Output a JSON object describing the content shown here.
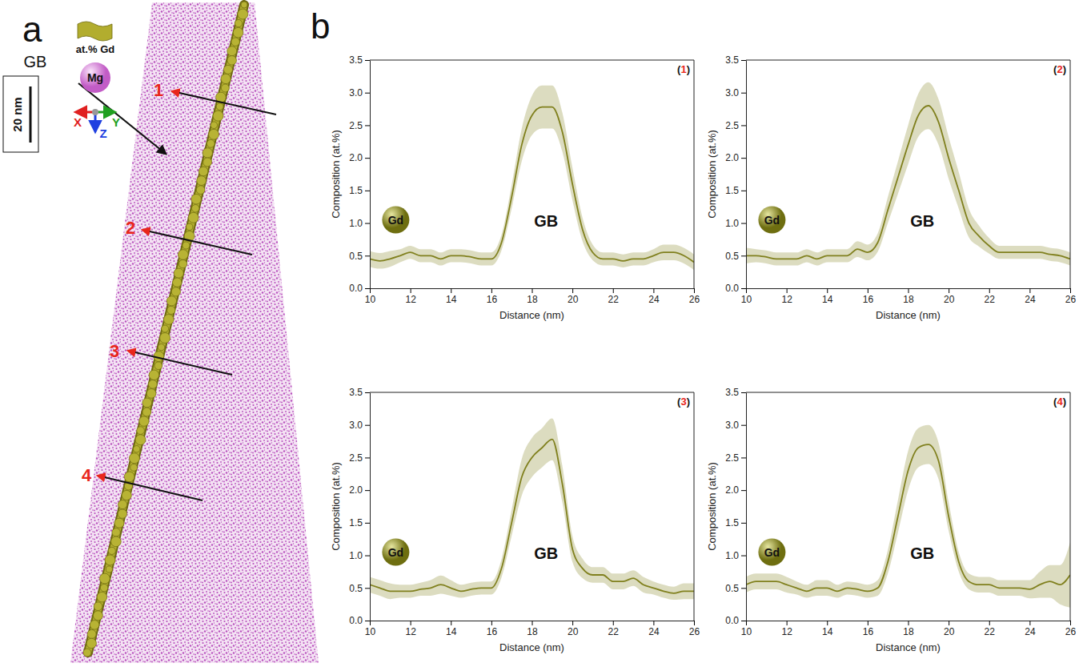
{
  "chart_data": [
    {
      "type": "line",
      "title": "(1)",
      "x_label": "Distance (nm)",
      "y_label": "Composition (at.%)",
      "annotation": "GB",
      "x": [
        10,
        10.5,
        11,
        11.5,
        12,
        12.5,
        13,
        13.5,
        14,
        14.5,
        15,
        15.5,
        16,
        16.5,
        17,
        17.5,
        18,
        18.5,
        19,
        19.5,
        20,
        20.5,
        21,
        21.5,
        22,
        22.5,
        23,
        23.5,
        24,
        24.5,
        25,
        25.5,
        26
      ],
      "series": [
        {
          "name": "Gd",
          "color": "#80801e",
          "values": [
            0.45,
            0.42,
            0.45,
            0.5,
            0.55,
            0.5,
            0.5,
            0.45,
            0.5,
            0.5,
            0.48,
            0.45,
            0.45,
            0.7,
            1.4,
            2.2,
            2.65,
            2.78,
            2.78,
            2.4,
            1.6,
            0.9,
            0.55,
            0.45,
            0.45,
            0.42,
            0.45,
            0.45,
            0.5,
            0.55,
            0.55,
            0.5,
            0.4
          ],
          "error": [
            0.12,
            0.12,
            0.12,
            0.1,
            0.1,
            0.1,
            0.1,
            0.1,
            0.1,
            0.1,
            0.1,
            0.1,
            0.1,
            0.12,
            0.18,
            0.25,
            0.3,
            0.33,
            0.33,
            0.3,
            0.25,
            0.18,
            0.12,
            0.1,
            0.1,
            0.1,
            0.1,
            0.1,
            0.1,
            0.12,
            0.12,
            0.12,
            0.12
          ]
        }
      ],
      "xlim": [
        10,
        26
      ],
      "xticks": [
        10,
        12,
        14,
        16,
        18,
        20,
        22,
        24,
        26
      ],
      "ylim": [
        0,
        3.5
      ],
      "yticks": [
        {
          "value": 0,
          "label": "0.0"
        },
        {
          "value": 0.5,
          "label": "0.5"
        },
        {
          "value": 1,
          "label": "1.0"
        },
        {
          "value": 1.5,
          "label": "1.5"
        },
        {
          "value": 2,
          "label": "2.0"
        },
        {
          "value": 2.5,
          "label": "2.5"
        },
        {
          "value": 3,
          "label": "3.0"
        },
        {
          "value": 3.5,
          "label": "3.5"
        }
      ]
    },
    {
      "type": "line",
      "title": "(2)",
      "x_label": "Distance (nm)",
      "y_label": "Composition (at.%)",
      "annotation": "GB",
      "x": [
        10,
        10.5,
        11,
        11.5,
        12,
        12.5,
        13,
        13.5,
        14,
        14.5,
        15,
        15.5,
        16,
        16.5,
        17,
        17.5,
        18,
        18.5,
        19,
        19.5,
        20,
        20.5,
        21,
        21.5,
        22,
        22.5,
        23,
        23.5,
        24,
        24.5,
        25,
        25.5,
        26
      ],
      "series": [
        {
          "name": "Gd",
          "color": "#80801e",
          "values": [
            0.5,
            0.5,
            0.48,
            0.45,
            0.45,
            0.45,
            0.5,
            0.45,
            0.5,
            0.5,
            0.5,
            0.6,
            0.55,
            0.7,
            1.2,
            1.7,
            2.2,
            2.65,
            2.8,
            2.55,
            2.0,
            1.5,
            1.0,
            0.8,
            0.65,
            0.55,
            0.55,
            0.55,
            0.55,
            0.55,
            0.52,
            0.5,
            0.45
          ],
          "error": [
            0.12,
            0.1,
            0.1,
            0.1,
            0.1,
            0.1,
            0.1,
            0.1,
            0.1,
            0.1,
            0.1,
            0.12,
            0.12,
            0.14,
            0.2,
            0.25,
            0.3,
            0.33,
            0.36,
            0.35,
            0.32,
            0.28,
            0.22,
            0.16,
            0.12,
            0.1,
            0.1,
            0.1,
            0.1,
            0.1,
            0.1,
            0.1,
            0.1
          ]
        }
      ],
      "xlim": [
        10,
        26
      ],
      "xticks": [
        10,
        12,
        14,
        16,
        18,
        20,
        22,
        24,
        26
      ],
      "ylim": [
        0,
        3.5
      ],
      "yticks": [
        {
          "value": 0,
          "label": "0.0"
        },
        {
          "value": 0.5,
          "label": "0.5"
        },
        {
          "value": 1,
          "label": "1.0"
        },
        {
          "value": 1.5,
          "label": "1.5"
        },
        {
          "value": 2,
          "label": "2.0"
        },
        {
          "value": 2.5,
          "label": "2.5"
        },
        {
          "value": 3,
          "label": "3.0"
        },
        {
          "value": 3.5,
          "label": "3.5"
        }
      ]
    },
    {
      "type": "line",
      "title": "(3)",
      "x_label": "Distance (nm)",
      "y_label": "Composition (at.%)",
      "annotation": "GB",
      "x": [
        10,
        10.5,
        11,
        11.5,
        12,
        12.5,
        13,
        13.5,
        14,
        14.5,
        15,
        15.5,
        16,
        16.5,
        17,
        17.5,
        18,
        18.5,
        19,
        19.5,
        20,
        20.5,
        21,
        21.5,
        22,
        22.5,
        23,
        23.5,
        24,
        24.5,
        25,
        25.5,
        26
      ],
      "series": [
        {
          "name": "Gd",
          "color": "#80801e",
          "values": [
            0.55,
            0.5,
            0.45,
            0.45,
            0.45,
            0.48,
            0.5,
            0.55,
            0.5,
            0.45,
            0.48,
            0.5,
            0.5,
            0.8,
            1.5,
            2.2,
            2.5,
            2.65,
            2.78,
            2.1,
            1.1,
            0.8,
            0.7,
            0.7,
            0.6,
            0.6,
            0.65,
            0.55,
            0.5,
            0.45,
            0.42,
            0.45,
            0.45
          ],
          "error": [
            0.12,
            0.12,
            0.12,
            0.1,
            0.1,
            0.1,
            0.12,
            0.14,
            0.12,
            0.1,
            0.1,
            0.1,
            0.1,
            0.14,
            0.2,
            0.28,
            0.3,
            0.3,
            0.32,
            0.28,
            0.2,
            0.15,
            0.12,
            0.12,
            0.12,
            0.12,
            0.12,
            0.12,
            0.1,
            0.1,
            0.1,
            0.12,
            0.12
          ]
        }
      ],
      "xlim": [
        10,
        26
      ],
      "xticks": [
        10,
        12,
        14,
        16,
        18,
        20,
        22,
        24,
        26
      ],
      "ylim": [
        0,
        3.5
      ],
      "yticks": [
        {
          "value": 0,
          "label": "0.0"
        },
        {
          "value": 0.5,
          "label": "0.5"
        },
        {
          "value": 1,
          "label": "1.0"
        },
        {
          "value": 1.5,
          "label": "1.5"
        },
        {
          "value": 2,
          "label": "2.0"
        },
        {
          "value": 2.5,
          "label": "2.5"
        },
        {
          "value": 3,
          "label": "3.0"
        },
        {
          "value": 3.5,
          "label": "3.5"
        }
      ]
    },
    {
      "type": "line",
      "title": "(4)",
      "x_label": "Distance (nm)",
      "y_label": "Composition (at.%)",
      "annotation": "GB",
      "x": [
        10,
        10.5,
        11,
        11.5,
        12,
        12.5,
        13,
        13.5,
        14,
        14.5,
        15,
        15.5,
        16,
        16.5,
        17,
        17.5,
        18,
        18.5,
        19,
        19.5,
        20,
        20.5,
        21,
        21.5,
        22,
        22.5,
        23,
        23.5,
        24,
        24.5,
        25,
        25.5,
        26
      ],
      "series": [
        {
          "name": "Gd",
          "color": "#80801e",
          "values": [
            0.55,
            0.6,
            0.6,
            0.6,
            0.55,
            0.5,
            0.45,
            0.5,
            0.5,
            0.45,
            0.5,
            0.48,
            0.45,
            0.5,
            0.9,
            1.6,
            2.3,
            2.65,
            2.7,
            2.45,
            1.6,
            0.9,
            0.6,
            0.55,
            0.55,
            0.5,
            0.5,
            0.5,
            0.48,
            0.55,
            0.6,
            0.55,
            0.7
          ],
          "error": [
            0.12,
            0.12,
            0.12,
            0.12,
            0.12,
            0.1,
            0.1,
            0.12,
            0.12,
            0.1,
            0.1,
            0.1,
            0.1,
            0.12,
            0.18,
            0.25,
            0.3,
            0.3,
            0.3,
            0.28,
            0.22,
            0.15,
            0.12,
            0.12,
            0.12,
            0.12,
            0.12,
            0.12,
            0.14,
            0.2,
            0.25,
            0.3,
            0.5
          ]
        }
      ],
      "xlim": [
        10,
        26
      ],
      "xticks": [
        10,
        12,
        14,
        16,
        18,
        20,
        22,
        24,
        26
      ],
      "ylim": [
        0,
        3.5
      ],
      "yticks": [
        {
          "value": 0,
          "label": "0.0"
        },
        {
          "value": 0.5,
          "label": "0.5"
        },
        {
          "value": 1,
          "label": "1.0"
        },
        {
          "value": 1.5,
          "label": "1.5"
        },
        {
          "value": 2,
          "label": "2.0"
        },
        {
          "value": 2.5,
          "label": "2.5"
        },
        {
          "value": 3,
          "label": "3.0"
        },
        {
          "value": 3.5,
          "label": "3.5"
        }
      ]
    }
  ],
  "panel_a": {
    "letter": "a",
    "legend_label": "at.% Gd",
    "atom_label": "Mg",
    "axes": [
      "X",
      "Y",
      "Z"
    ],
    "scale_bar": "20 nm",
    "gb_label": "GB",
    "markers": [
      "1",
      "2",
      "3",
      "4"
    ]
  },
  "panel_b": {
    "letter": "b"
  }
}
